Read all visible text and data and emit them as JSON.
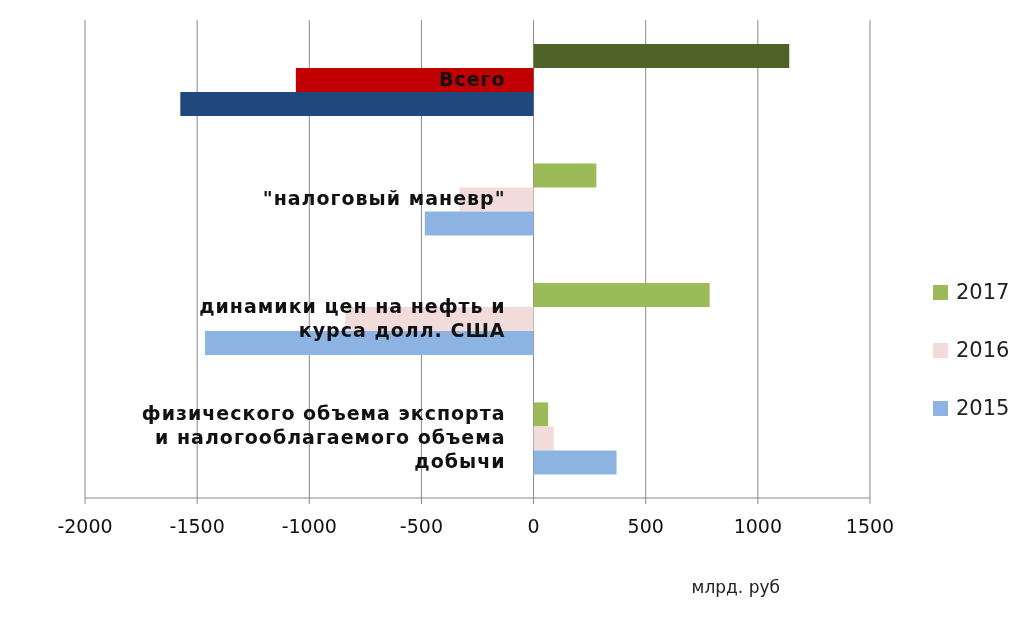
{
  "chart_data": {
    "type": "bar",
    "orientation": "horizontal",
    "xlabel": "млрд. руб",
    "categories": [
      "Всего",
      "\"налоговый маневр\"",
      "динамики цен на нефть и курса долл. США",
      "физического объема экспорта и налогооблагаемого объема добычи"
    ],
    "series": [
      {
        "name": "2017",
        "color": "#9bbb59",
        "colors": [
          "#4f6228",
          "#9bbb59",
          "#9bbb59",
          "#9bbb59"
        ],
        "values": [
          1140,
          280,
          785,
          65
        ]
      },
      {
        "name": "2016",
        "color": "#f2dcdb",
        "colors": [
          "#c00000",
          "#f2dcdb",
          "#f2dcdb",
          "#f2dcdb"
        ],
        "values": [
          -1060,
          -330,
          -840,
          90
        ]
      },
      {
        "name": "2015",
        "color": "#8db3e2",
        "colors": [
          "#1f497d",
          "#8db3e2",
          "#8db3e2",
          "#8db3e2"
        ],
        "values": [
          -1575,
          -485,
          -1465,
          370
        ]
      }
    ],
    "xlim": [
      -2000,
      1500
    ],
    "xticks": [
      -2000,
      -1500,
      -1000,
      -500,
      0,
      500,
      1000,
      1500
    ],
    "grid": "x",
    "legend": "right"
  }
}
